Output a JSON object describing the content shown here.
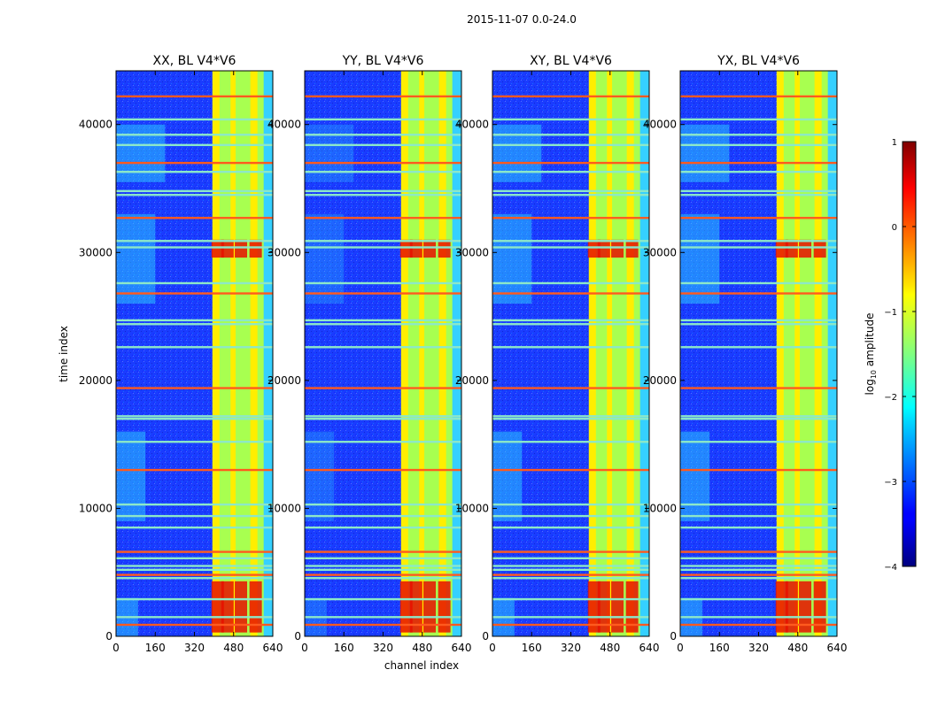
{
  "chart_data": {
    "type": "heatmap",
    "suptitle": "2015-11-07 0.0-24.0",
    "panels": [
      {
        "title": "XX, BL V4*V6",
        "strong_rows": [
          [
            300,
            4300
          ],
          [
            29600,
            31000
          ]
        ]
      },
      {
        "title": "YY, BL V4*V6",
        "strong_rows": [
          [
            300,
            4300
          ],
          [
            29600,
            31000
          ]
        ]
      },
      {
        "title": "XY, BL V4*V6",
        "strong_rows": [
          [
            300,
            4300
          ],
          [
            29600,
            31000
          ]
        ]
      },
      {
        "title": "YX, BL V4*V6",
        "strong_rows": [
          [
            300,
            4300
          ],
          [
            29600,
            31000
          ]
        ]
      }
    ],
    "xlabel": "channel index",
    "ylabel": "time index",
    "xlim": [
      0,
      640
    ],
    "ylim": [
      0,
      44200
    ],
    "xticks": [
      0,
      160,
      320,
      480,
      640
    ],
    "xtick_labels": [
      "0",
      "160",
      "320",
      "480",
      "640"
    ],
    "yticks": [
      0,
      10000,
      20000,
      30000,
      40000
    ],
    "ytick_labels": [
      "0",
      "10000",
      "20000",
      "30000",
      "40000"
    ],
    "rfi_band_channels": [
      405,
      640
    ],
    "bright_channels": [
      415,
      435,
      455,
      480,
      510,
      540,
      570,
      590
    ],
    "flagged_rows": [
      900,
      1500,
      2900,
      4550,
      4800,
      5200,
      5500,
      6100,
      6600,
      8500,
      9400,
      10300,
      13000,
      15200,
      17000,
      17200,
      19400,
      22600,
      24400,
      24700,
      26800,
      27600,
      30400,
      30900,
      32700,
      34500,
      34800,
      36300,
      37000,
      38400,
      39200,
      40400,
      42200
    ],
    "colorbar": {
      "label": "log10 amplitude",
      "label_main": "log",
      "label_sub": "10",
      "label_rest": " amplitude",
      "range": [
        -4,
        1
      ],
      "ticks": [
        -4,
        -3,
        -2,
        -1,
        0,
        1
      ],
      "tick_labels": [
        "−4",
        "−3",
        "−2",
        "−1",
        "0",
        "1"
      ],
      "colormap": "jet"
    }
  }
}
